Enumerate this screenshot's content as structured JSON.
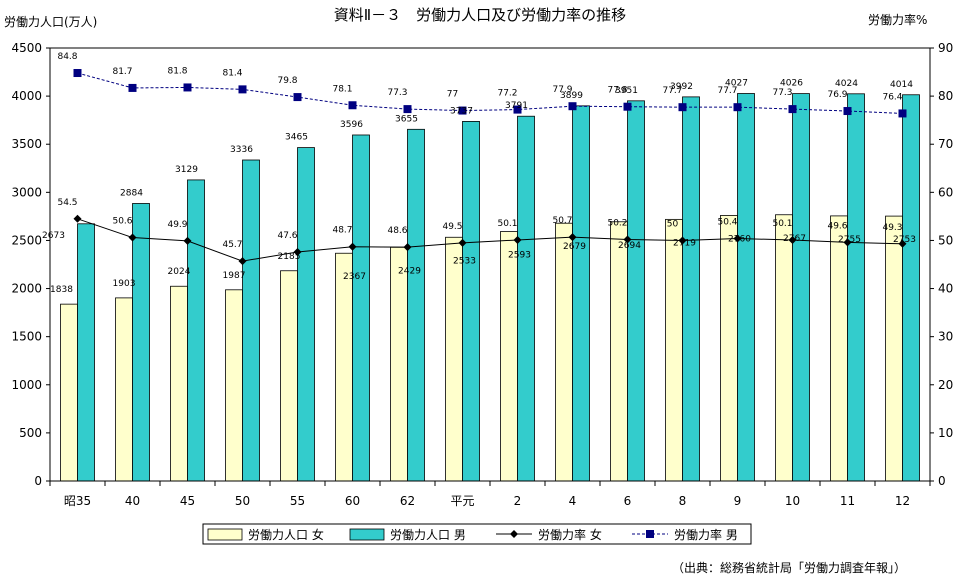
{
  "chart_data": {
    "type": "bar",
    "title": "資料Ⅱ－３　労働力人口及び労働力率の推移",
    "ylabel": "労働力人口(万人)",
    "y2label": "労働力率%",
    "ylim": [
      0,
      4500
    ],
    "yticks": [
      "0",
      "500",
      "1000",
      "1500",
      "2000",
      "2500",
      "3000",
      "3500",
      "4000",
      "4500"
    ],
    "y2lim": [
      0,
      90
    ],
    "y2ticks": [
      "0",
      "10",
      "20",
      "30",
      "40",
      "50",
      "60",
      "70",
      "80",
      "90"
    ],
    "categories": [
      "昭35",
      "40",
      "45",
      "50",
      "55",
      "60",
      "62",
      "平元",
      "2",
      "4",
      "6",
      "8",
      "9",
      "10",
      "11",
      "12"
    ],
    "series": [
      {
        "name": "労働力人口 女",
        "kind": "bar",
        "axis": "left",
        "color": "#ffffcc",
        "values": [
          1838,
          1903,
          2024,
          1987,
          2185,
          2367,
          2429,
          2533,
          2593,
          2679,
          2694,
          2719,
          2760,
          2767,
          2755,
          2753
        ],
        "labels": [
          "1838",
          "1903",
          "2024",
          "1987",
          "2185",
          "2367",
          "2429",
          "2533",
          "2593",
          "2679",
          "2694",
          "2719",
          "2760",
          "2767",
          "2755",
          "2753"
        ]
      },
      {
        "name": "労働力人口 男",
        "kind": "bar",
        "axis": "left",
        "color": "#33cccc",
        "values": [
          2673,
          2884,
          3129,
          3336,
          3465,
          3596,
          3655,
          3737,
          3791,
          3899,
          3951,
          3992,
          4027,
          4026,
          4024,
          4014
        ],
        "labels": [
          "2673",
          "2884",
          "3129",
          "3336",
          "3465",
          "3596",
          "3655",
          "3737",
          "3791",
          "3899",
          "3951",
          "3992",
          "4027",
          "4026",
          "4024",
          "4014"
        ]
      },
      {
        "name": "労働力率 女",
        "kind": "line",
        "axis": "right",
        "color": "#000000",
        "values": [
          54.5,
          50.6,
          49.9,
          45.7,
          47.6,
          48.7,
          48.6,
          49.5,
          50.1,
          50.7,
          50.2,
          50,
          50.4,
          50.1,
          49.6,
          49.3
        ],
        "labels": [
          "54.5",
          "50.6",
          "49.9",
          "45.7",
          "47.6",
          "48.7",
          "48.6",
          "49.5",
          "50.1",
          "50.7",
          "50.2",
          "50",
          "50.4",
          "50.1",
          "49.6",
          "49.3"
        ]
      },
      {
        "name": "労働力率 男",
        "kind": "line",
        "axis": "right",
        "color": "#000080",
        "values": [
          84.8,
          81.7,
          81.8,
          81.4,
          79.8,
          78.1,
          77.3,
          77,
          77.2,
          77.9,
          77.8,
          77.7,
          77.7,
          77.3,
          76.9,
          76.4
        ],
        "labels": [
          "84.8",
          "81.7",
          "81.8",
          "81.4",
          "79.8",
          "78.1",
          "77.3",
          "77",
          "77.2",
          "77.9",
          "77.8",
          "77.7",
          "77.7",
          "77.3",
          "76.9",
          "76.4"
        ]
      }
    ],
    "legend_position": "bottom",
    "source": "（出典：総務省統計局「労働力調査年報」）"
  }
}
